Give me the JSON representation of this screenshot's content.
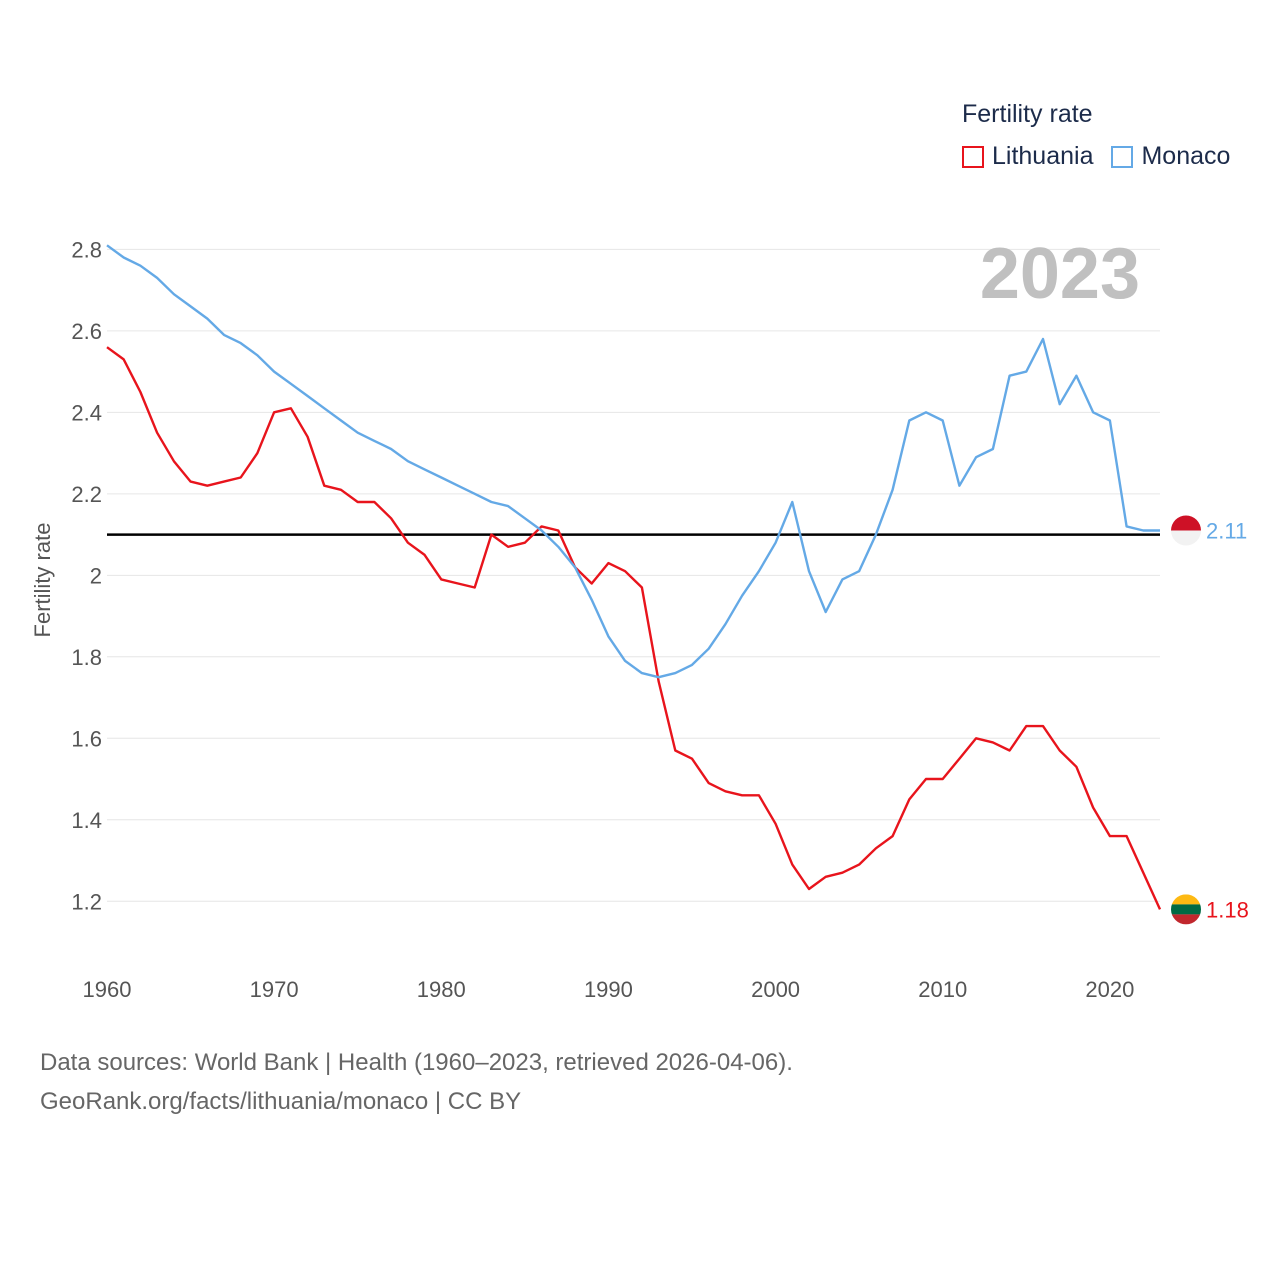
{
  "legend": {
    "title": "Fertility rate",
    "items": [
      {
        "label": "Lithuania",
        "color": "#e8141c"
      },
      {
        "label": "Monaco",
        "color": "#64a9e6"
      }
    ]
  },
  "footer": {
    "line1": "Data sources: World Bank | Health (1960–2023, retrieved 2026-04-06).",
    "line2": "GeoRank.org/facts/lithuania/monaco | CC BY"
  },
  "chart_data": {
    "type": "line",
    "title": "Fertility rate",
    "ylabel": "Fertility rate",
    "xlabel": "",
    "year_label": "2023",
    "xlim": [
      1960,
      2023
    ],
    "ylim": [
      1.1,
      2.85
    ],
    "x_ticks": [
      1960,
      1970,
      1980,
      1990,
      2000,
      2010,
      2020
    ],
    "y_ticks": [
      1.2,
      1.4,
      1.6,
      1.8,
      2,
      2.2,
      2.4,
      2.6,
      2.8
    ],
    "y_tick_labels": [
      "1.2",
      "1.4",
      "1.6",
      "1.8",
      "2",
      "2.2",
      "2.4",
      "2.6",
      "2.8"
    ],
    "reference_line": {
      "y": 2.1,
      "color": "#000000"
    },
    "x": [
      1960,
      1961,
      1962,
      1963,
      1964,
      1965,
      1966,
      1967,
      1968,
      1969,
      1970,
      1971,
      1972,
      1973,
      1974,
      1975,
      1976,
      1977,
      1978,
      1979,
      1980,
      1981,
      1982,
      1983,
      1984,
      1985,
      1986,
      1987,
      1988,
      1989,
      1990,
      1991,
      1992,
      1993,
      1994,
      1995,
      1996,
      1997,
      1998,
      1999,
      2000,
      2001,
      2002,
      2003,
      2004,
      2005,
      2006,
      2007,
      2008,
      2009,
      2010,
      2011,
      2012,
      2013,
      2014,
      2015,
      2016,
      2017,
      2018,
      2019,
      2020,
      2021,
      2022,
      2023
    ],
    "series": [
      {
        "name": "Lithuania",
        "color": "#e8141c",
        "end_label": "1.18",
        "flag": "lithuania",
        "values": [
          2.56,
          2.53,
          2.45,
          2.35,
          2.28,
          2.23,
          2.22,
          2.23,
          2.24,
          2.3,
          2.4,
          2.41,
          2.34,
          2.22,
          2.21,
          2.18,
          2.18,
          2.14,
          2.08,
          2.05,
          1.99,
          1.98,
          1.97,
          2.1,
          2.07,
          2.08,
          2.12,
          2.11,
          2.02,
          1.98,
          2.03,
          2.01,
          1.97,
          1.74,
          1.57,
          1.55,
          1.49,
          1.47,
          1.46,
          1.46,
          1.39,
          1.29,
          1.23,
          1.26,
          1.27,
          1.29,
          1.33,
          1.36,
          1.45,
          1.5,
          1.5,
          1.55,
          1.6,
          1.59,
          1.57,
          1.63,
          1.63,
          1.57,
          1.53,
          1.43,
          1.36,
          1.36,
          1.27,
          1.18
        ]
      },
      {
        "name": "Monaco",
        "color": "#64a9e6",
        "end_label": "2.11",
        "flag": "monaco",
        "values": [
          2.81,
          2.78,
          2.76,
          2.73,
          2.69,
          2.66,
          2.63,
          2.59,
          2.57,
          2.54,
          2.5,
          2.47,
          2.44,
          2.41,
          2.38,
          2.35,
          2.33,
          2.31,
          2.28,
          2.26,
          2.24,
          2.22,
          2.2,
          2.18,
          2.17,
          2.14,
          2.11,
          2.07,
          2.02,
          1.94,
          1.85,
          1.79,
          1.76,
          1.75,
          1.76,
          1.78,
          1.82,
          1.88,
          1.95,
          2.01,
          2.08,
          2.18,
          2.01,
          1.91,
          1.99,
          2.01,
          2.1,
          2.21,
          2.38,
          2.4,
          2.38,
          2.22,
          2.29,
          2.31,
          2.49,
          2.5,
          2.58,
          2.42,
          2.49,
          2.4,
          2.38,
          2.12,
          2.11,
          2.11
        ]
      }
    ]
  }
}
